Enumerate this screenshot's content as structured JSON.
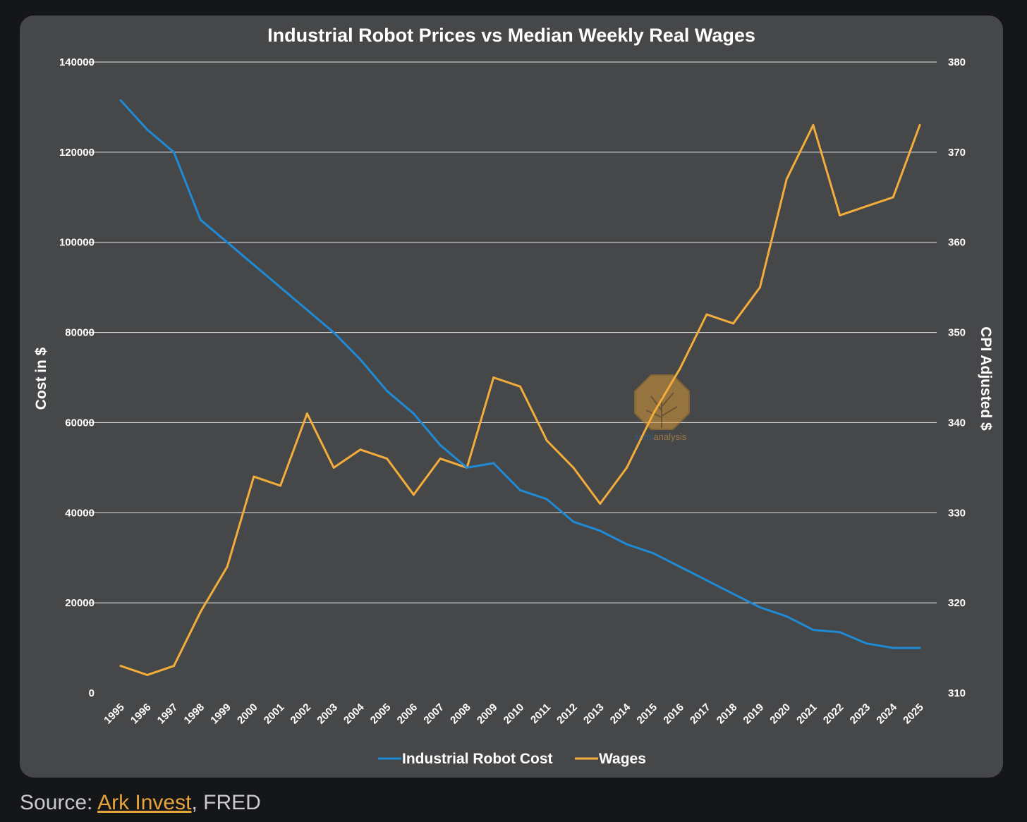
{
  "chart_data": {
    "type": "line",
    "title": "Industrial Robot Prices vs Median Weekly Real Wages",
    "xlabel": "",
    "ylabel": "Cost in $",
    "y2label": "CPI Adjusted $",
    "x": [
      "1995",
      "1996",
      "1997",
      "1998",
      "1999",
      "2000",
      "2001",
      "2002",
      "2003",
      "2004",
      "2005",
      "2006",
      "2007",
      "2008",
      "2009",
      "2010",
      "2011",
      "2012",
      "2013",
      "2014",
      "2015",
      "2016",
      "2017",
      "2018",
      "2019",
      "2020",
      "2021",
      "2022",
      "2023",
      "2024",
      "2025"
    ],
    "ylim": [
      0,
      140000
    ],
    "y2lim": [
      310,
      380
    ],
    "yticks": [
      "0",
      "20000",
      "40000",
      "60000",
      "80000",
      "100000",
      "120000",
      "140000"
    ],
    "y2ticks": [
      "310",
      "320",
      "330",
      "340",
      "350",
      "360",
      "370",
      "380"
    ],
    "grid": true,
    "legend_position": "bottom",
    "series": [
      {
        "name": "Industrial Robot Cost",
        "axis": "left",
        "color": "#1f8ad6",
        "values": [
          131500,
          125000,
          120000,
          105000,
          100000,
          95000,
          90000,
          85000,
          80000,
          74000,
          67000,
          62000,
          55000,
          50000,
          51000,
          45000,
          43000,
          38000,
          36000,
          33000,
          31000,
          28000,
          25000,
          22000,
          19000,
          17000,
          14000,
          13500,
          11000,
          10000,
          10000
        ]
      },
      {
        "name": "Wages",
        "axis": "right",
        "color": "#f2ad3b",
        "values": [
          313,
          312,
          313,
          319,
          324,
          334,
          333,
          341,
          335,
          337,
          336,
          332,
          336,
          335,
          345,
          344,
          338,
          335,
          331,
          335,
          341,
          346,
          352,
          351,
          355,
          367,
          373,
          363,
          364,
          365,
          373
        ]
      }
    ]
  },
  "watermark": {
    "text_a": "semi",
    "text_b": "analysis"
  },
  "source": {
    "prefix": "Source: ",
    "link_text": "Ark Invest",
    "suffix": ", FRED"
  }
}
